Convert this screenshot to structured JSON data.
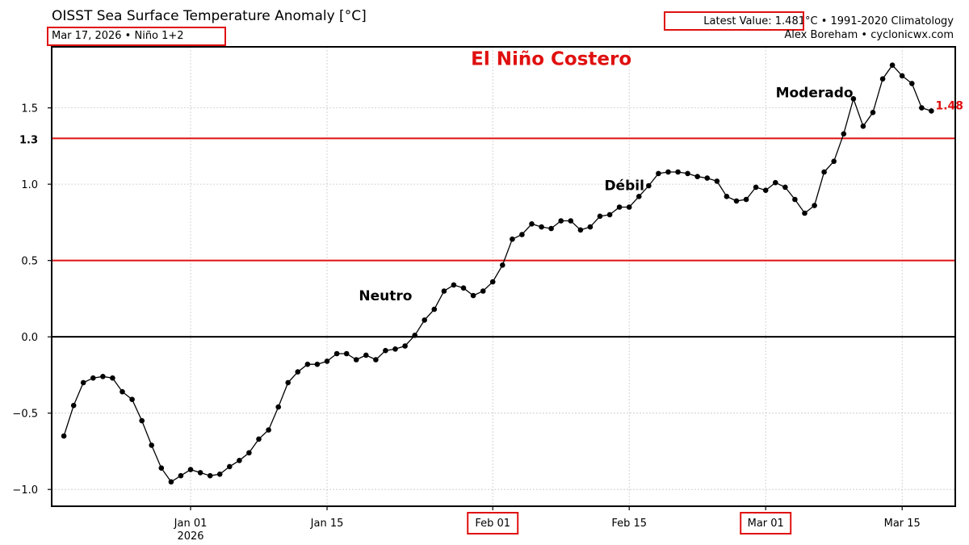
{
  "header": {
    "title": "OISST Sea Surface Temperature Anomaly [°C]",
    "subtitle": "Mar 17, 2026 • Niño 1+2",
    "latest_value": "Latest Value: 1.481°C",
    "climatology": " • 1991-2020 Climatology",
    "credit": "Alex Boreham • cyclonicwx.com"
  },
  "chart_data": {
    "type": "line",
    "title": "OISST Sea Surface Temperature Anomaly [°C]",
    "xlabel": "",
    "ylabel": "",
    "ylim": [
      -1.11,
      1.9
    ],
    "x_start": "2025-12-19",
    "x_end": "2026-03-17",
    "x_ticks": [
      {
        "day": 13,
        "label": "Jan 01",
        "sublabel": "2026"
      },
      {
        "day": 27,
        "label": "Jan 15",
        "sublabel": ""
      },
      {
        "day": 44,
        "label": "Feb 01",
        "sublabel": ""
      },
      {
        "day": 58,
        "label": "Feb 15",
        "sublabel": ""
      },
      {
        "day": 72,
        "label": "Mar 01",
        "sublabel": ""
      },
      {
        "day": 86,
        "label": "Mar 15",
        "sublabel": ""
      }
    ],
    "y_ticks": [
      {
        "value": -1.0,
        "label": "−1.0"
      },
      {
        "value": -0.5,
        "label": "−0.5"
      },
      {
        "value": 0.0,
        "label": "0.0"
      },
      {
        "value": 0.5,
        "label": "0.5"
      },
      {
        "value": 1.0,
        "label": "1.0"
      },
      {
        "value": 1.5,
        "label": "1.5"
      }
    ],
    "thresholds": [
      {
        "value": 0.5,
        "label": "",
        "color": "#e01010"
      },
      {
        "value": 1.3,
        "label": "1.3",
        "color": "#e01010"
      }
    ],
    "zero_line": 0.0,
    "grid": true,
    "series": [
      {
        "name": "Niño 1+2 SST Anomaly",
        "color": "#000000",
        "values": [
          -0.65,
          -0.45,
          -0.3,
          -0.27,
          -0.26,
          -0.27,
          -0.36,
          -0.41,
          -0.55,
          -0.71,
          -0.86,
          -0.95,
          -0.91,
          -0.87,
          -0.89,
          -0.91,
          -0.9,
          -0.85,
          -0.81,
          -0.76,
          -0.67,
          -0.61,
          -0.46,
          -0.3,
          -0.23,
          -0.18,
          -0.18,
          -0.16,
          -0.11,
          -0.11,
          -0.15,
          -0.12,
          -0.15,
          -0.09,
          -0.08,
          -0.06,
          0.01,
          0.11,
          0.18,
          0.3,
          0.34,
          0.32,
          0.27,
          0.3,
          0.36,
          0.47,
          0.64,
          0.67,
          0.74,
          0.72,
          0.71,
          0.76,
          0.76,
          0.7,
          0.72,
          0.79,
          0.8,
          0.85,
          0.85,
          0.92,
          0.99,
          1.07,
          1.08,
          1.08,
          1.07,
          1.05,
          1.04,
          1.02,
          0.92,
          0.89,
          0.9,
          0.98,
          0.96,
          1.01,
          0.98,
          0.9,
          0.81,
          0.86,
          1.08,
          1.15,
          1.33,
          1.56,
          1.38,
          1.47,
          1.69,
          1.78,
          1.71,
          1.66,
          1.5,
          1.48
        ]
      }
    ],
    "annotations": [
      {
        "text": "El Niño Costero",
        "day": 50,
        "value": 1.78,
        "kind": "headline"
      },
      {
        "text": "Neutro",
        "day": 33,
        "value": 0.24,
        "kind": "zone"
      },
      {
        "text": "Débil",
        "day": 57.5,
        "value": 0.96,
        "kind": "zone"
      },
      {
        "text": "Moderado",
        "day": 77,
        "value": 1.57,
        "kind": "zone"
      },
      {
        "text": "1.48",
        "day": 90,
        "value": 1.48,
        "kind": "last"
      }
    ],
    "highlighted_ticks": [
      "Feb 01",
      "Mar 01"
    ]
  }
}
